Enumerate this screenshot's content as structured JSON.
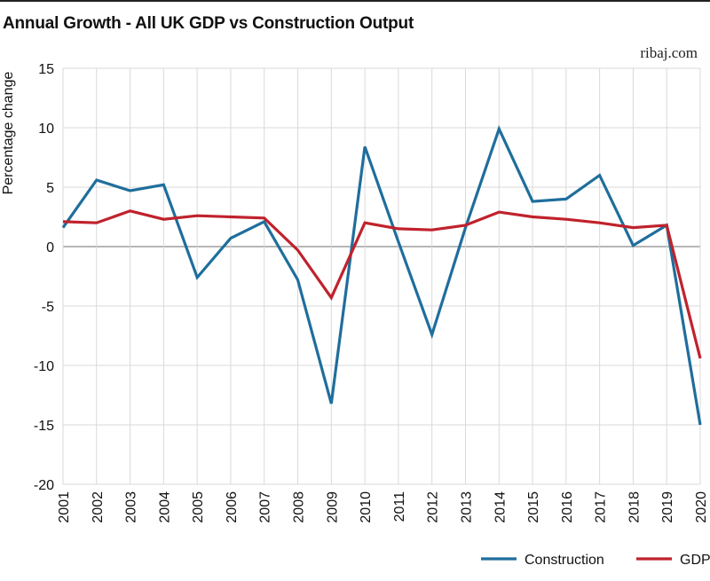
{
  "header": {
    "title": "Annual Growth - All UK GDP vs Construction Output",
    "source": "ribaj.com"
  },
  "chart_data": {
    "type": "line",
    "title": "Annual Growth - All UK GDP vs Construction Output",
    "ylabel": "Percentage change",
    "xlabel": "",
    "ylim": [
      -20,
      15
    ],
    "yticks": [
      15,
      10,
      5,
      0,
      -5,
      -10,
      -15,
      -20
    ],
    "x": [
      "2001",
      "2002",
      "2003",
      "2004",
      "2005",
      "2006",
      "2007",
      "2008",
      "2009",
      "2010",
      "2011",
      "2012",
      "2013",
      "2014",
      "2015",
      "2016",
      "2017",
      "2018",
      "2019",
      "2020"
    ],
    "grid": "both",
    "legend": "bottom-right",
    "series": [
      {
        "name": "Construction",
        "color": "#1f6e9c",
        "values": [
          1.6,
          5.6,
          4.7,
          5.2,
          -2.6,
          0.7,
          2.1,
          -2.8,
          -13.2,
          8.4,
          0.4,
          -7.4,
          1.6,
          9.9,
          3.8,
          4.0,
          6.0,
          0.1,
          1.8,
          -15.0
        ]
      },
      {
        "name": "GDP",
        "color": "#c0222c",
        "values": [
          2.1,
          2.0,
          3.0,
          2.3,
          2.6,
          2.5,
          2.4,
          -0.3,
          -4.3,
          2.0,
          1.5,
          1.4,
          1.8,
          2.9,
          2.5,
          2.3,
          2.0,
          1.6,
          1.8,
          -9.4
        ]
      }
    ]
  }
}
